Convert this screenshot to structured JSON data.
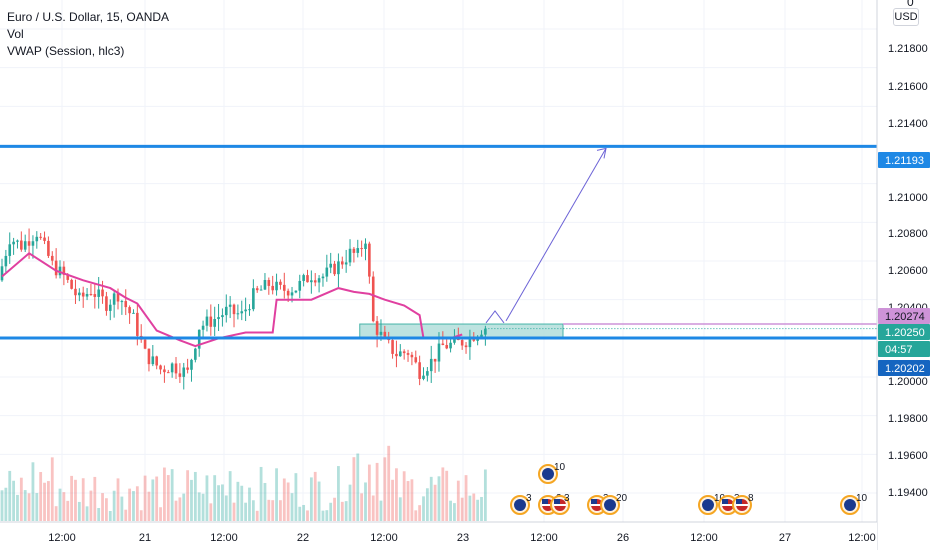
{
  "legend": {
    "symbol": "Euro / U.S. Dollar, 15, OANDA",
    "indicator_1": "Vol",
    "indicator_2": "VWAP (Session, hlc3)"
  },
  "price_axis": {
    "currency": "USD",
    "top_label": "0",
    "ticks": [
      "1.21800",
      "1.21600",
      "1.21400",
      "1.21000",
      "1.20800",
      "1.20600",
      "1.20400",
      "1.20000",
      "1.19800",
      "1.19600",
      "1.19400"
    ]
  },
  "price_tags": [
    {
      "label": "1.21193",
      "color": "#1e88e5"
    },
    {
      "label": "1.20274",
      "color": "#ce93d8"
    },
    {
      "label": "1.20250",
      "color": "#26a69a"
    },
    {
      "label": "04:57",
      "color": "#26a69a"
    },
    {
      "label": "1.20202",
      "color": "#1565c0"
    }
  ],
  "time_axis": {
    "ticks": [
      "12:00",
      "21",
      "12:00",
      "22",
      "12:00",
      "23",
      "12:00",
      "26",
      "12:00",
      "27",
      "12:00"
    ]
  },
  "events": [
    {
      "label": "10"
    },
    {
      "label": "3"
    },
    {
      "label": "2"
    },
    {
      "label": "3"
    },
    {
      "label": "3"
    },
    {
      "label": "20"
    },
    {
      "label": "10"
    },
    {
      "label": "3"
    },
    {
      "label": "8"
    },
    {
      "label": "10"
    }
  ],
  "colors": {
    "up": "#26a69a",
    "down": "#ef5350",
    "vwap": "#e040a0",
    "level": "#1e88e5",
    "projection": "#6c63d6",
    "zone_fill": "#b2dfdb",
    "grid": "#f0f3fa"
  },
  "chart_data": {
    "type": "candlestick",
    "symbol": "EURUSD",
    "timeframe": "15",
    "y_range": [
      1.1925,
      1.2195
    ],
    "x_categories": [
      "12:00",
      "21",
      "12:00",
      "22",
      "12:00",
      "23",
      "12:00",
      "26",
      "12:00",
      "27",
      "12:00"
    ],
    "price_path": [
      [
        0,
        1.205
      ],
      [
        3,
        1.2072
      ],
      [
        6,
        1.2068
      ],
      [
        10,
        1.2075
      ],
      [
        14,
        1.2058
      ],
      [
        17,
        1.2052
      ],
      [
        21,
        1.204
      ],
      [
        24,
        1.2045
      ],
      [
        28,
        1.2038
      ],
      [
        31,
        1.2043
      ],
      [
        35,
        1.203
      ],
      [
        38,
        1.2012
      ],
      [
        42,
        1.2004
      ],
      [
        45,
        1.2006
      ],
      [
        49,
        1.2002
      ],
      [
        52,
        1.2026
      ],
      [
        56,
        1.203
      ],
      [
        59,
        1.2034
      ],
      [
        63,
        1.2032
      ],
      [
        66,
        1.2042
      ],
      [
        70,
        1.2048
      ],
      [
        73,
        1.2045
      ],
      [
        77,
        1.2046
      ],
      [
        81,
        1.2053
      ],
      [
        84,
        1.2052
      ],
      [
        88,
        1.2058
      ],
      [
        91,
        1.2064
      ],
      [
        93,
        1.2063
      ],
      [
        95,
        1.2072
      ],
      [
        97,
        1.2028
      ],
      [
        100,
        1.2018
      ],
      [
        103,
        1.2012
      ],
      [
        106,
        1.2013
      ],
      [
        109,
        1.2003
      ],
      [
        112,
        1.2008
      ],
      [
        115,
        1.2016
      ],
      [
        118,
        1.2017
      ],
      [
        121,
        1.2019
      ],
      [
        123,
        1.2022
      ],
      [
        125,
        1.2025
      ]
    ],
    "vwap": [
      [
        0,
        1.2052
      ],
      [
        7,
        1.2064
      ],
      [
        14,
        1.2055
      ],
      [
        21,
        1.205
      ],
      [
        28,
        1.2046
      ],
      [
        32,
        1.2041
      ],
      [
        35,
        1.2038
      ],
      [
        40,
        1.2024
      ],
      [
        46,
        1.2019
      ],
      [
        50,
        1.2016
      ],
      [
        56,
        1.202
      ],
      [
        63,
        1.2023
      ],
      [
        70,
        1.2023
      ],
      [
        71,
        1.204
      ],
      [
        80,
        1.204
      ],
      [
        87,
        1.2046
      ],
      [
        91,
        1.2044
      ],
      [
        95,
        1.2043
      ],
      [
        99,
        1.204
      ],
      [
        104,
        1.2037
      ],
      [
        108,
        1.2032
      ],
      [
        109,
        1.202
      ],
      [
        116,
        1.202
      ],
      [
        119,
        1.2022
      ]
    ],
    "volume_scale": [
      0,
      100
    ],
    "levels": [
      {
        "name": "resistance",
        "price": 1.21193
      },
      {
        "name": "support",
        "price": 1.20202
      }
    ],
    "last_price": 1.2025,
    "zone": {
      "x_start": 92,
      "x_end": 137,
      "price_low": 1.20202,
      "price_high": 1.20274
    },
    "projection": [
      [
        123,
        1.2029
      ],
      [
        148,
        1.21193
      ]
    ],
    "grid": true
  }
}
